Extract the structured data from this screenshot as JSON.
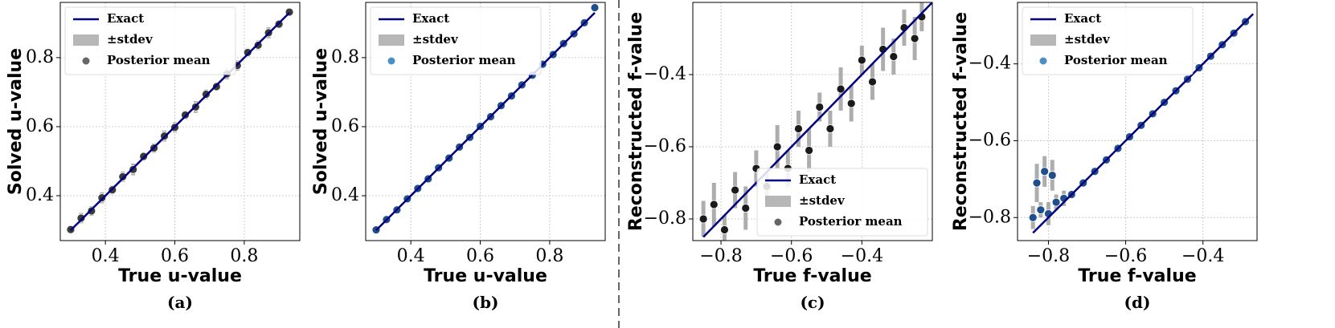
{
  "chart_data": [
    {
      "type": "scatter",
      "caption": "(a)",
      "xlabel": "True u-value",
      "ylabel": "Solved u-value",
      "xlim": [
        0.27,
        0.96
      ],
      "ylim": [
        0.27,
        0.96
      ],
      "xticks": [
        0.4,
        0.6,
        0.8
      ],
      "yticks": [
        0.4,
        0.6,
        0.8
      ],
      "grid": true,
      "legend": "upper left",
      "series": [
        {
          "name": "Exact",
          "kind": "line",
          "color": "#000080",
          "x": [
            0.3,
            0.93
          ],
          "values": [
            0.3,
            0.93
          ]
        },
        {
          "name": "±stdev",
          "kind": "error",
          "color": "#999999",
          "values": [
            0.012,
            0.015,
            0.014,
            0.016,
            0.013,
            0.015,
            0.017,
            0.012,
            0.014,
            0.016,
            0.015,
            0.013,
            0.017,
            0.014,
            0.012,
            0.016,
            0.015,
            0.013,
            0.014,
            0.016,
            0.012,
            0.01
          ]
        },
        {
          "name": "Posterior mean",
          "kind": "points",
          "color": "#3a3a3a",
          "legend_color": "#666666",
          "x": [
            0.3,
            0.33,
            0.36,
            0.39,
            0.42,
            0.45,
            0.48,
            0.51,
            0.54,
            0.57,
            0.6,
            0.63,
            0.66,
            0.69,
            0.72,
            0.75,
            0.78,
            0.81,
            0.84,
            0.87,
            0.9,
            0.93
          ],
          "values": [
            0.302,
            0.335,
            0.356,
            0.394,
            0.417,
            0.455,
            0.476,
            0.514,
            0.538,
            0.573,
            0.598,
            0.634,
            0.657,
            0.694,
            0.716,
            0.753,
            0.777,
            0.815,
            0.836,
            0.872,
            0.897,
            0.932
          ]
        }
      ]
    },
    {
      "type": "scatter",
      "caption": "(b)",
      "xlabel": "True u-value",
      "ylabel": "Solved u-value",
      "xlim": [
        0.27,
        0.96
      ],
      "ylim": [
        0.27,
        0.96
      ],
      "xticks": [
        0.4,
        0.6,
        0.8
      ],
      "yticks": [
        0.4,
        0.6,
        0.8
      ],
      "grid": true,
      "legend": "upper left",
      "series": [
        {
          "name": "Exact",
          "kind": "line",
          "color": "#000080",
          "x": [
            0.3,
            0.93
          ],
          "values": [
            0.3,
            0.93
          ]
        },
        {
          "name": "±stdev",
          "kind": "error",
          "color": "#999999",
          "values": [
            0.004,
            0.003,
            0.004,
            0.005,
            0.003,
            0.004,
            0.004,
            0.003,
            0.005,
            0.004,
            0.003,
            0.004,
            0.004,
            0.003,
            0.005,
            0.004,
            0.003,
            0.004,
            0.004,
            0.005,
            0.004,
            0.006
          ]
        },
        {
          "name": "Posterior mean",
          "kind": "points",
          "color": "#1f4e8c",
          "legend_color": "#4a90c8",
          "x": [
            0.3,
            0.33,
            0.36,
            0.39,
            0.42,
            0.45,
            0.48,
            0.51,
            0.54,
            0.57,
            0.6,
            0.63,
            0.66,
            0.69,
            0.72,
            0.75,
            0.78,
            0.81,
            0.84,
            0.87,
            0.9,
            0.93
          ],
          "values": [
            0.301,
            0.331,
            0.359,
            0.391,
            0.421,
            0.449,
            0.481,
            0.509,
            0.541,
            0.569,
            0.601,
            0.629,
            0.661,
            0.689,
            0.721,
            0.749,
            0.781,
            0.809,
            0.841,
            0.869,
            0.901,
            0.945
          ]
        }
      ]
    },
    {
      "type": "scatter",
      "caption": "(c)",
      "xlabel": "True f-value",
      "ylabel": "Reconstructed f-value",
      "xlim": [
        -0.88,
        -0.2
      ],
      "ylim": [
        -0.86,
        -0.2
      ],
      "xticks": [
        {
          "value": -0.8,
          "label": "−0.8"
        },
        {
          "value": -0.6,
          "label": "−0.6"
        },
        {
          "value": -0.4,
          "label": "−0.4"
        }
      ],
      "yticks": [
        {
          "value": -0.8,
          "label": "−0.8"
        },
        {
          "value": -0.6,
          "label": "−0.6"
        },
        {
          "value": -0.4,
          "label": "−0.4"
        }
      ],
      "grid": true,
      "legend": "lower right",
      "series": [
        {
          "name": "Exact",
          "kind": "line",
          "color": "#000080",
          "x": [
            -0.85,
            -0.2
          ],
          "values": [
            -0.85,
            -0.2
          ]
        },
        {
          "name": "±stdev",
          "kind": "error",
          "color": "#999999",
          "values": [
            0.05,
            0.06,
            0.04,
            0.05,
            0.06,
            0.05,
            0.04,
            0.06,
            0.05,
            0.05,
            0.06,
            0.04,
            0.05,
            0.06,
            0.05,
            0.04,
            0.05,
            0.06,
            0.05,
            0.05,
            0.06,
            0.04
          ]
        },
        {
          "name": "Posterior mean",
          "kind": "points",
          "color": "#1a1a1a",
          "legend_color": "#666666",
          "x": [
            -0.85,
            -0.82,
            -0.79,
            -0.76,
            -0.73,
            -0.7,
            -0.67,
            -0.64,
            -0.61,
            -0.58,
            -0.55,
            -0.52,
            -0.49,
            -0.46,
            -0.43,
            -0.4,
            -0.37,
            -0.34,
            -0.31,
            -0.28,
            -0.25,
            -0.23
          ],
          "values": [
            -0.8,
            -0.76,
            -0.83,
            -0.72,
            -0.77,
            -0.66,
            -0.71,
            -0.6,
            -0.66,
            -0.55,
            -0.61,
            -0.49,
            -0.55,
            -0.44,
            -0.48,
            -0.36,
            -0.42,
            -0.33,
            -0.35,
            -0.27,
            -0.3,
            -0.24
          ]
        }
      ]
    },
    {
      "type": "scatter",
      "caption": "(d)",
      "xlabel": "True f-value",
      "ylabel": "Reconstructed f-value",
      "xlim": [
        -0.88,
        -0.26
      ],
      "ylim": [
        -0.86,
        -0.24
      ],
      "xticks": [
        {
          "value": -0.8,
          "label": "−0.8"
        },
        {
          "value": -0.6,
          "label": "−0.6"
        },
        {
          "value": -0.4,
          "label": "−0.4"
        }
      ],
      "yticks": [
        {
          "value": -0.8,
          "label": "−0.8"
        },
        {
          "value": -0.6,
          "label": "−0.6"
        },
        {
          "value": -0.4,
          "label": "−0.4"
        }
      ],
      "grid": true,
      "legend": "upper left",
      "series": [
        {
          "name": "Exact",
          "kind": "line",
          "color": "#000080",
          "x": [
            -0.84,
            -0.27
          ],
          "values": [
            -0.84,
            -0.27
          ]
        },
        {
          "name": "±stdev",
          "kind": "error",
          "color": "#999999",
          "values": [
            0.03,
            0.02,
            0.03,
            0.02,
            0.02,
            0.05,
            0.04,
            0.04,
            0.01,
            0.01,
            0.01,
            0.01,
            0.01,
            0.01,
            0.01,
            0.01,
            0.01,
            0.01,
            0.01,
            0.01,
            0.01,
            0.01,
            0.01,
            0.01
          ]
        },
        {
          "name": "Posterior mean",
          "kind": "points",
          "color": "#1f4e8c",
          "legend_color": "#4a90c8",
          "x": [
            -0.84,
            -0.82,
            -0.8,
            -0.78,
            -0.76,
            -0.83,
            -0.81,
            -0.79,
            -0.74,
            -0.71,
            -0.68,
            -0.65,
            -0.62,
            -0.59,
            -0.56,
            -0.53,
            -0.5,
            -0.47,
            -0.44,
            -0.41,
            -0.38,
            -0.35,
            -0.32,
            -0.29
          ],
          "values": [
            -0.8,
            -0.78,
            -0.79,
            -0.76,
            -0.75,
            -0.71,
            -0.68,
            -0.69,
            -0.74,
            -0.71,
            -0.68,
            -0.65,
            -0.62,
            -0.59,
            -0.56,
            -0.53,
            -0.5,
            -0.47,
            -0.44,
            -0.41,
            -0.38,
            -0.35,
            -0.32,
            -0.29
          ]
        }
      ]
    }
  ]
}
